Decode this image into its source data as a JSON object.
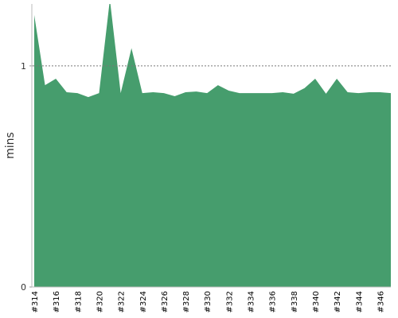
{
  "chart_data": {
    "type": "area",
    "y_label": "mins",
    "categories": [
      "#314",
      null,
      "#316",
      null,
      "#318",
      null,
      "#320",
      null,
      "#322",
      null,
      "#324",
      null,
      "#326",
      null,
      "#328",
      null,
      "#330",
      null,
      "#332",
      null,
      "#334",
      null,
      "#336",
      null,
      "#338",
      null,
      "#340",
      null,
      "#342",
      null,
      "#344",
      null,
      "#346",
      null
    ],
    "values": [
      1.23,
      0.913,
      0.942,
      0.881,
      0.877,
      0.859,
      0.877,
      1.3,
      0.877,
      1.08,
      0.877,
      0.881,
      0.877,
      0.863,
      0.881,
      0.884,
      0.877,
      0.913,
      0.888,
      0.877,
      0.877,
      0.877,
      0.877,
      0.881,
      0.874,
      0.899,
      0.942,
      0.874,
      0.942,
      0.881,
      0.877,
      0.881,
      0.881,
      0.877
    ],
    "color": "#469d6d",
    "ylim": [
      0,
      1.28
    ],
    "yticks": [
      0,
      1
    ],
    "grid": true
  }
}
